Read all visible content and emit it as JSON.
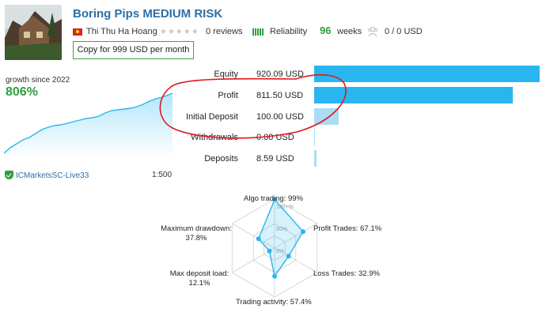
{
  "header": {
    "title": "Boring Pips MEDIUM RISK",
    "author": "Thi Thu Ha Hoang",
    "reviews": "0 reviews",
    "reliability": "Reliability",
    "weeks_num": "96",
    "weeks_word": "weeks",
    "subscribers": "0 / 0 USD",
    "copy_button": "Copy for 999 USD per month"
  },
  "growth": {
    "label": "growth since 2022",
    "value": "806%"
  },
  "account": {
    "server": "ICMarketsSC-Live33",
    "leverage": "1:500"
  },
  "stats": [
    {
      "label": "Equity",
      "value": "920.09 USD",
      "fraction": 1.0
    },
    {
      "label": "Profit",
      "value": "811.50 USD",
      "fraction": 0.882
    },
    {
      "label": "Initial Deposit",
      "value": "100.00 USD",
      "fraction": 0.109
    },
    {
      "label": "Withdrawals",
      "value": "0.00 USD",
      "fraction": 0.0
    },
    {
      "label": "Deposits",
      "value": "8.59 USD",
      "fraction": 0.009
    }
  ],
  "radar": {
    "center_label": "100+%",
    "mid_label": "50%",
    "zero_label": "0%",
    "axes": [
      {
        "label": "Algo trading: 99%",
        "value": 0.99
      },
      {
        "label": "Profit Trades: 67.1%",
        "value": 0.671
      },
      {
        "label": "Loss Trades: 32.9%",
        "value": 0.329
      },
      {
        "label": "Trading activity: 57.4%",
        "value": 0.574
      },
      {
        "label_line1": "Max deposit load:",
        "label_line2": "12.1%",
        "value": 0.121
      },
      {
        "label_line1": "Maximum drawdown:",
        "label_line2": "37.8%",
        "value": 0.378
      }
    ]
  },
  "colors": {
    "title_blue": "#2b6fa6",
    "green": "#2e9f3c",
    "bar_blue": "#29b6f0",
    "bar_light": "#a8ddf5",
    "annotation_red": "#e0191c"
  }
}
